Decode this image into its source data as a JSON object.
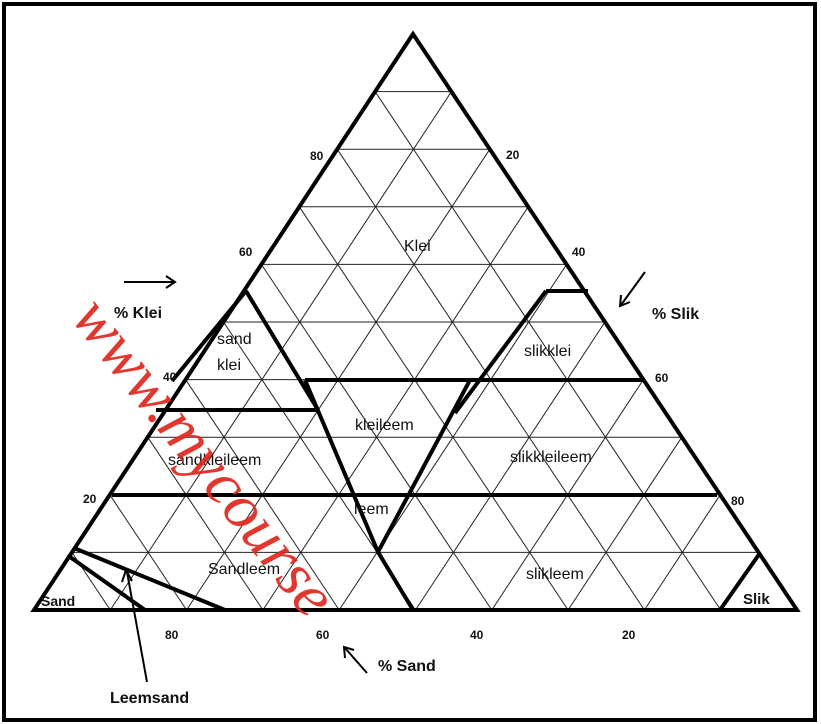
{
  "diagram": {
    "axis_labels": {
      "clay": "% Klei",
      "silt": "% Slik",
      "sand": "% Sand"
    },
    "clay_ticks": [
      "80",
      "60",
      "40",
      "20"
    ],
    "silt_ticks": [
      "20",
      "40",
      "60",
      "80"
    ],
    "sand_ticks": [
      "80",
      "60",
      "40",
      "20"
    ],
    "regions": {
      "klei": "Klei",
      "sand_klei_line1": "sand",
      "sand_klei_line2": "klei",
      "slikklei": "slikklei",
      "kleileem": "kleileem",
      "sandkleileem": "sandkleileem",
      "slikkleileem": "slikkleileem",
      "leem": "leem",
      "sandleem": "Sandleem",
      "slikleem": "slikleem",
      "sand": "Sand",
      "slik": "Slik",
      "leemsand": "Leemsand"
    },
    "watermark": "www.mycourse"
  }
}
